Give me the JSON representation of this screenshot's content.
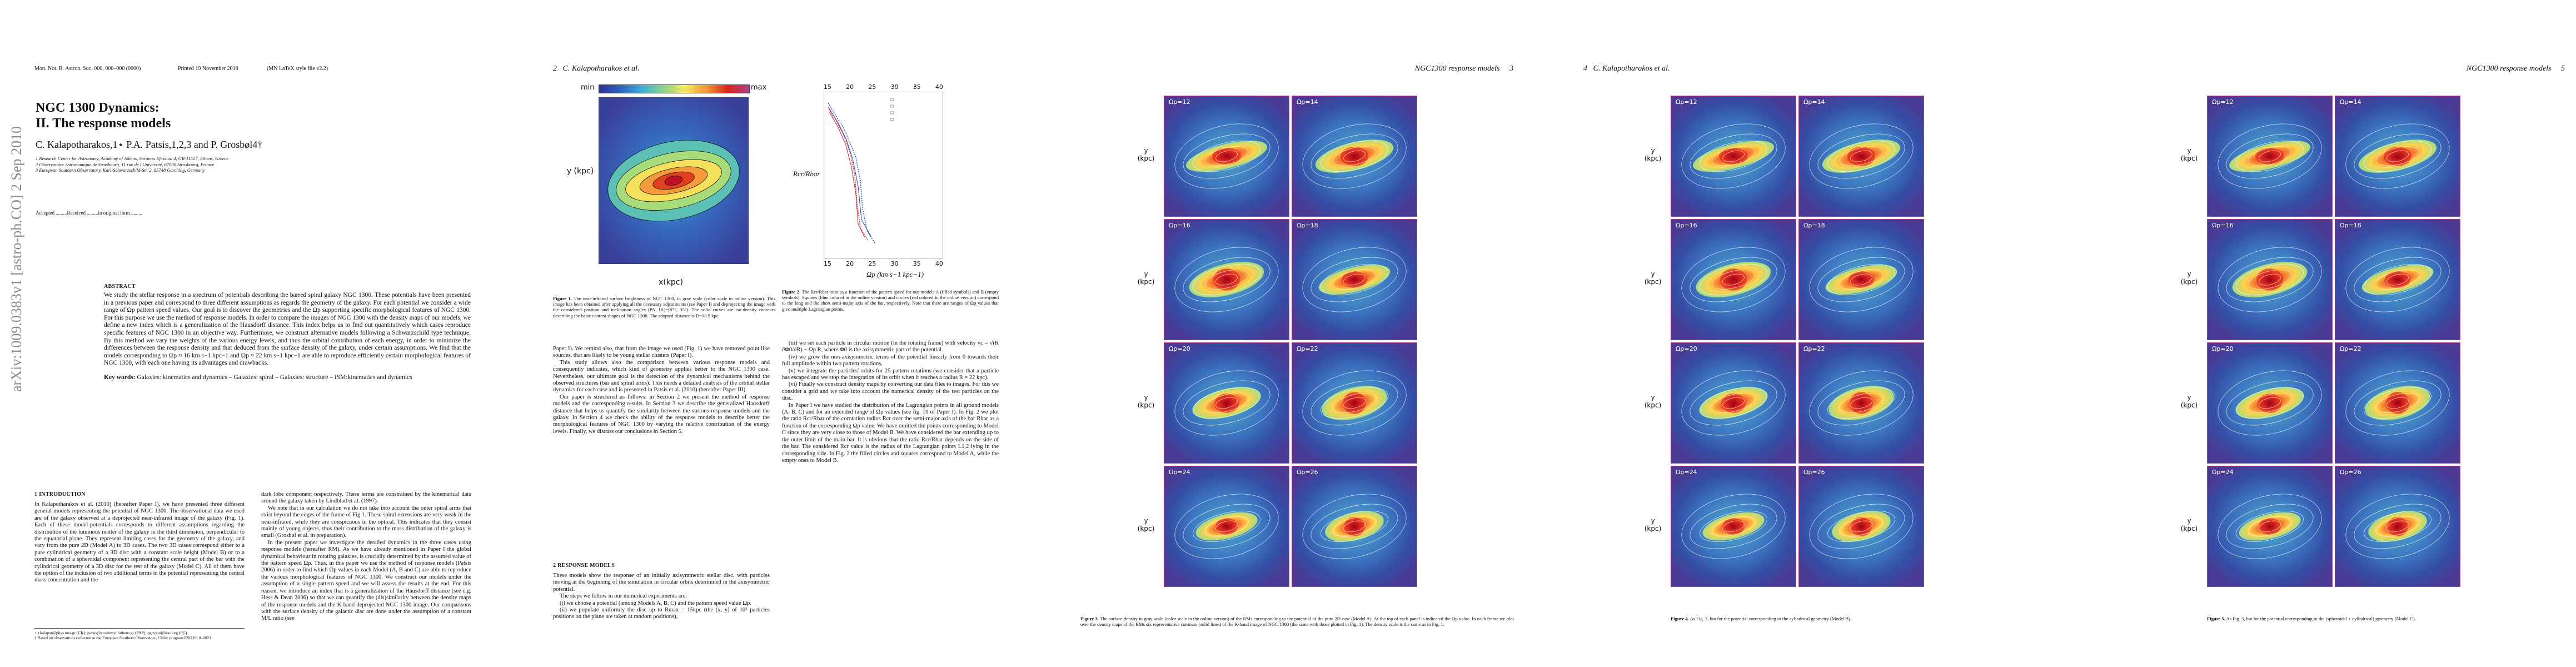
{
  "arxiv_stamp": "arXiv:1009.0383v1  [astro-ph.CO]  2 Sep 2010",
  "page1": {
    "header_left": "Mon. Not. R. Astron. Soc. 000, 000–000 (0000)",
    "header_mid": "Printed 19 November 2018",
    "header_right": "(MN LaTeX style file v2.2)",
    "title_line1": "NGC 1300 Dynamics:",
    "title_line2": "II. The response models",
    "authors": "C. Kalapotharakos,1⋆ P.A. Patsis,1,2,3 and P. Grosbøl4†",
    "affiliations": [
      "1 Research Center for Astronomy, Academy of Athens, Soranou Efessiou 4, GR-11527, Athens, Greece",
      "2 Observatoire Astronomique de Strasbourg, 11 rue de l'Université, 67000 Strasbourg, France",
      "3 European Southern Observatory, Karl-Schwarzschild-Str. 2, 85748 Garching, Germany"
    ],
    "accepted": "Accepted .........Received .........in original form .........",
    "abstract_heading": "ABSTRACT",
    "abstract": "We study the stellar response in a spectrum of potentials describing the barred spiral galaxy NGC 1300. These potentials have been presented in a previous paper and correspond to three different assumptions as regards the geometry of the galaxy. For each potential we consider a wide range of Ωp pattern speed values. Our goal is to discover the geometries and the Ωp supporting specific morphological features of NGC 1300. For this purpose we use the method of response models. In order to compare the images of NGC 1300 with the density maps of our models, we define a new index which is a generalization of the Hausdorff distance. This index helps us to find out quantitatively which cases reproduce specific features of NGC 1300 in an objective way. Furthermore, we construct alternative models following a Schwarzschild type technique. By this method we vary the weights of the various energy levels, and thus the orbital contribution of each energy, in order to minimize the differences between the response density and that deduced from the surface density of the galaxy, under certain assumptions. We find that the models corresponding to Ωp ≈ 16 km s−1 kpc−1 and Ωp ≈ 22 km s−1 kpc−1 are able to reproduce efficiently certain morphological features of NGC 1300, with each one having its advantages and drawbacks.",
    "keywords_label": "Key words:",
    "keywords": "Galaxies: kinematics and dynamics – Galaxies: spiral – Galaxies: structure – ISM:kinematics and dynamics",
    "section": "1 INTRODUCTION",
    "intro_left": "In Kalapotharakos et al. (2010) (hereafter Paper I), we have presented three different general models representing the potential of NGC 1300. The observational data we used are of the galaxy observed at a deprojected near-infrared image of the galaxy (Fig. 1). Each of these model-potentials corresponds to different assumptions regarding the distribution of the luminous matter of the galaxy in the third dimension, perpendicular to the equatorial plane. They represent limiting cases for the geometry of the galaxy, and vary from the pure 2D (Model A) to 3D cases. The two 3D cases correspond either to a pure cylindrical geometry of a 3D disc with a constant scale height (Model B) or to a combination of a spheroidal component representing the central part of the bar with the cylindrical geometry of a 3D disc for the rest of the galaxy (Model C). All of them have the option of the inclusion of two additional terms in the potential representing the central mass concentration and the",
    "footnotes": [
      "⋆ ckalapot@phys.uoa.gr (CK); patsis@academyofathens.gr (PAP); pgrosbol@eso.org (PG)",
      "† Based on observations collected at the European Southern Observatory, Chile: program ESO 69.A-0021."
    ],
    "intro_right": [
      "dark lobe component respectively. These terms are constrained by the kinematical data around the galaxy taken by Lindblad et al. (1997).",
      "We note that in our calculation we do not take into account the outer spiral arms that exist beyond the edges of the frame of Fig 1. These spiral extensions are very weak in the near-infrared, while they are conspicuous in the optical. This indicates that they consist mainly of young objects, thus their contribution to the mass distribution of the galaxy is small (Grosbøl et al. in preparation).",
      "In the present paper we investigate the detailed dynamics in the three cases using response models (hereafter RM). As we have already mentioned in Paper I the global dynamical behaviour in rotating galaxies, is crucially determined by the assumed value of the pattern speed Ωp. Thus, in this paper we use the method of response models (Patsis 2006) in order to find which Ωp values in each Model (A, B and C) are able to reproduce the various morphological features of NGC 1300. We construct our models under the assumption of a single pattern speed and we will assess the results at the end. For this reason, we introduce an index that is a generalization of the Hausdorff distance (see e.g. Hess & Dean 2006) so that we can quantify the (dis)similarity between the density maps of the response models and the K-band deprojected NGC 1300 image. Our comparisons with the surface density of the galactic disc are done under the assumption of a constant M/L ratio (see"
    ]
  },
  "page2": {
    "page_number": "2",
    "header": "C. Kalapotharakos et al.",
    "colorbar_min": "min",
    "colorbar_max": "max",
    "fig1_ylabel": "y (kpc)",
    "fig1_xlabel": "x(kpc)",
    "fig2_ylabel": "Rcr/Rbar",
    "fig2_xlabel": "Ωp (km s−1 kpc−1)",
    "fig2_xticks": [
      "15",
      "20",
      "25",
      "30",
      "35",
      "40"
    ],
    "fig1_caption_label": "Figure 1.",
    "fig1_caption": "The near-infrared surface brightness of NGC 1300, in gray scale (color scale in online version). This image has been obtained after applying all the necessary adjustments (see Paper I) and deprojecting the image with the considered position and inclination angles (PA, IA)=(87°, 35°). The solid curves are iso-density contours describing the basic content shapes of NGC 1300. The adopted distance is D=18.9 kpc.",
    "fig2_caption_label": "Figure 2.",
    "fig2_caption": "The Rcr/Rbar ratio as a function of the pattern speed for our models A (filled symbols) and B (empty symbols). Squares (blue colored in the online version) and circles (red colored in the online version) correspond to the long and the short semi-major axis of the bar, respectively. Note that there are ranges of Ωp values that give multiple Lagrangian points.",
    "left_text": [
      "Paper I). We remind also, that from the image we used (Fig. 1) we have removed point like sources, that are likely to be young stellar clusters (Paper I).",
      "This study allows also the comparison between various response models and consequently indicates, which kind of geometry applies better to the NGC 1300 case. Nevertheless, our ultimate goal is the detection of the dynamical mechanisms behind the observed structures (bar and spiral arms). This needs a detailed analysis of the orbital stellar dynamics for each case and is presented in Patsis et al. (2010) (hereafter Paper III).",
      "Our paper is structured as follows: in Section 2 we present the method of response models and the corresponding results. In Section 3 we describe the generalized Hausdorff distance that helps us quantify the similarity between the various response models and the galaxy. In Section 4 we check the ability of the response models to describe better the morphological features of NGC 1300 by varying the relative contribution of the energy levels. Finally, we discuss our conclusions in Section 5."
    ],
    "section": "2 RESPONSE MODELS",
    "section_text": [
      "These models show the response of an initially axisymmetric stellar disc, with particles moving at the beginning of the simulation in circular orbits determined in the axisymmetric potential.",
      "The steps we follow in our numerical experiments are:",
      "(i) we choose a potential (among Models A, B, C) and the pattern speed value Ωp.",
      "(ii) we populate uniformly the disc up to Rmax = 15kpc (the (x, y) of 10⁵ particles positions on the plane are taken at random positions),"
    ],
    "right_text": [
      "(iii) we set each particle in circular motion (in the rotating frame) with velocity vc = √(R ∂Φ0/∂R) − Ωp R, where Φ0 is the axisymmetric part of the potential.",
      "(iv) we grow the non-axisymmetric terms of the potential linearly from 0 towards their full amplitude within two pattern rotations,",
      "(v) we integrate the particles' orbits for 25 pattern rotations (we consider that a particle has escaped and we stop the integration of its orbit when it reaches a radius R = 22 kpc).",
      "(vi) Finally we construct density maps by converting our data files to images. For this we consider a grid and we take into account the numerical density of the test particles on the disc.",
      "In Paper I we have studied the distribution of the Lagrangian points in all ground models (A, B, C) and for an extended range of Ωp values (see fig. 10 of Paper I). In Fig. 2 we plot the ratio Rcr/Rbar of the corotation radius Rcr over the semi-major axis of the bar Rbar as a function of the corresponding Ωp value. We have omitted the points corresponding to Model C since they are very close to those of Model B. We have considered the bar extending up to the outer limit of the main bar. It is obvious that the ratio Rcr/Rbar depends on the side of the bar. The considered Rcr value is the radius of the Lagrangian points L1,2 lying in the corresponding side. In Fig. 2 the filled circles and squares correspond to Model A, while the empty ones to Model B."
    ]
  },
  "page3": {
    "page_number": "3",
    "header": "NGC1300 response models",
    "panels": [
      "Ωp=12",
      "Ωp=14",
      "Ωp=16",
      "Ωp=18",
      "Ωp=20",
      "Ωp=22",
      "Ωp=24",
      "Ωp=26"
    ],
    "y_label": "y (kpc)",
    "caption_label": "Figure 3.",
    "caption": "The surface density in gray scale (color scale in the online version) of the RMs corresponding to the potential of the pure 2D case (Model A). At the top of each panel is indicated the Ωp value. In each frame we plot over the density maps of the RMs six representative contours (solid lines) of the K-band image of NGC 1300 (the same with those plotted in Fig. 1). The density scale is the same as in Fig. 1."
  },
  "page4": {
    "page_number": "4",
    "header": "C. Kalapotharakos et al.",
    "panels": [
      "Ωp=12",
      "Ωp=14",
      "Ωp=16",
      "Ωp=18",
      "Ωp=20",
      "Ωp=22",
      "Ωp=24",
      "Ωp=26"
    ],
    "y_label": "y (kpc)",
    "caption_label": "Figure 4.",
    "caption": "As Fig. 3, but for the potential corresponding to the cylindrical geometry (Model B)."
  },
  "page5": {
    "page_number": "5",
    "header": "NGC1300 response models",
    "panels": [
      "Ωp=12",
      "Ωp=14",
      "Ωp=16",
      "Ωp=18",
      "Ωp=20",
      "Ωp=22",
      "Ωp=24",
      "Ωp=26"
    ],
    "y_label": "y (kpc)",
    "caption_label": "Figure 5.",
    "caption": "As Fig. 3, but for the potential corresponding to the (spheroidal + cylindrical) geometry (Model C)."
  }
}
